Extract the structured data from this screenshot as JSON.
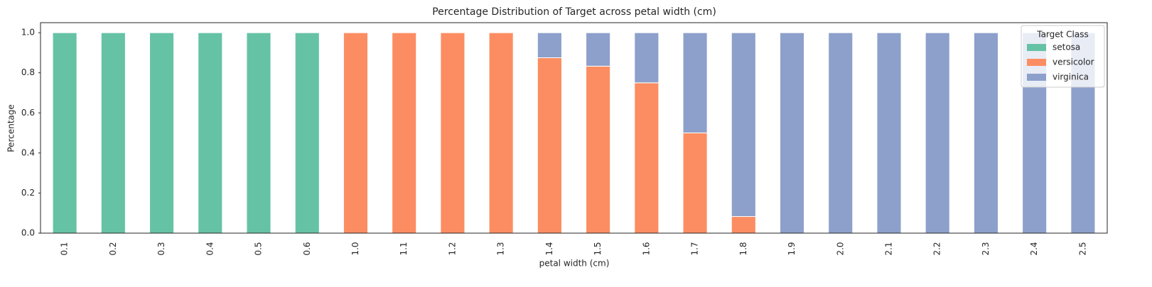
{
  "chart_data": {
    "type": "stacked_bar",
    "title": "Percentage Distribution of Target across petal width (cm)",
    "x_label": "petal width (cm)",
    "y_label": "Percentage",
    "categories": [
      "0.1",
      "0.2",
      "0.3",
      "0.4",
      "0.5",
      "0.6",
      "1.0",
      "1.1",
      "1.2",
      "1.3",
      "1.4",
      "1.5",
      "1.6",
      "1.7",
      "1.8",
      "1.9",
      "2.0",
      "2.1",
      "2.2",
      "2.3",
      "2.4",
      "2.5"
    ],
    "series": [
      {
        "name": "setosa",
        "color": "#66c2a5",
        "values": [
          1,
          1,
          1,
          1,
          1,
          1,
          0,
          0,
          0,
          0,
          0,
          0,
          0,
          0,
          0,
          0,
          0,
          0,
          0,
          0,
          0,
          0
        ]
      },
      {
        "name": "versicolor",
        "color": "#fc8d62",
        "values": [
          0,
          0,
          0,
          0,
          0,
          0,
          1,
          1,
          1,
          1,
          0.875,
          0.833,
          0.75,
          0.5,
          0.083,
          0,
          0,
          0,
          0,
          0,
          0,
          0
        ]
      },
      {
        "name": "virginica",
        "color": "#8da0cb",
        "values": [
          0,
          0,
          0,
          0,
          0,
          0,
          0,
          0,
          0,
          0,
          0.125,
          0.167,
          0.25,
          0.5,
          0.917,
          1,
          1,
          1,
          1,
          1,
          1,
          1
        ]
      }
    ],
    "legend_title": "Target Class",
    "legend": "upper right",
    "ylim": [
      0,
      1.05
    ],
    "yticks": [
      {
        "value": 0,
        "label": "0.0"
      },
      0.2,
      0.4,
      0.6,
      0.8,
      {
        "value": 1,
        "label": "1.0"
      }
    ],
    "grid": false
  }
}
